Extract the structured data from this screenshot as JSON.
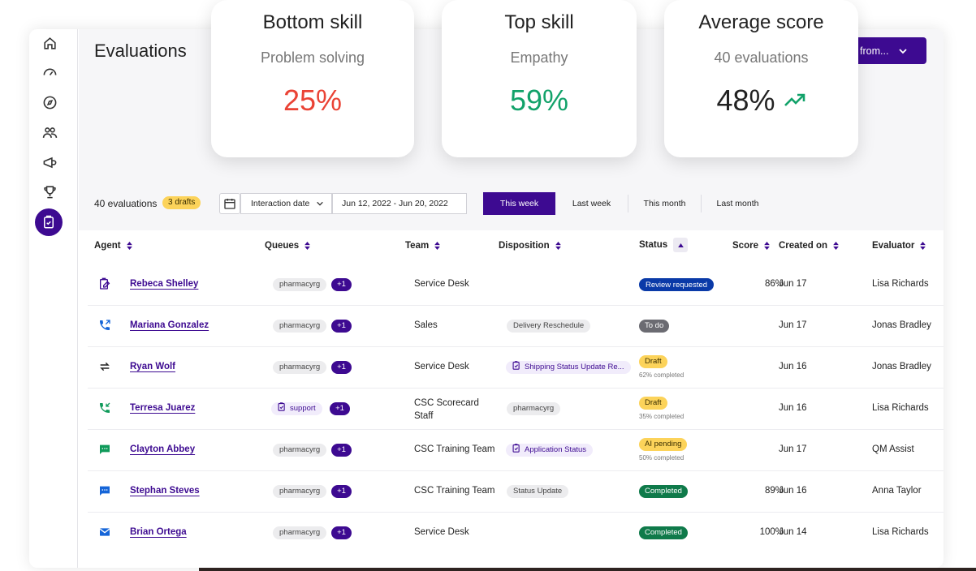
{
  "page": {
    "title": "Evaluations",
    "top_button_label": "from..."
  },
  "cards": [
    {
      "title": "Bottom skill",
      "subtitle": "Problem solving",
      "value": "25%",
      "color": "#ea4335"
    },
    {
      "title": "Top skill",
      "subtitle": "Empathy",
      "value": "59%",
      "color": "#12a26a"
    },
    {
      "title": "Average score",
      "subtitle": "40 evaluations",
      "value": "48%",
      "color": "#222222",
      "trend_icon": "trending-up-icon",
      "trend_color": "#12a26a"
    }
  ],
  "toolbar": {
    "count_label": "40 evaluations",
    "drafts_label": "3 drafts",
    "date_type": "Interaction date",
    "date_range": "Jun 12, 2022 - Jun 20, 2022",
    "periods": [
      {
        "label": "This week",
        "active": true
      },
      {
        "label": "Last week",
        "active": false
      },
      {
        "label": "This month",
        "active": false
      },
      {
        "label": "Last month",
        "active": false
      }
    ]
  },
  "table": {
    "headers": {
      "agent": "Agent",
      "queues": "Queues",
      "team": "Team",
      "disposition": "Disposition",
      "status": "Status",
      "score": "Score",
      "created_on": "Created on",
      "evaluator": "Evaluator"
    },
    "rows": [
      {
        "icon": "clipboard-edit-icon",
        "agent": "Rebeca Shelley",
        "queue": "pharmacyrg",
        "queue_style": "gray",
        "queue_more": "+1",
        "team": "Service Desk",
        "team_line2": "",
        "disposition": "",
        "disposition_style": "",
        "status": "Review requested",
        "status_style": "review",
        "progress": "",
        "score": "86%",
        "created_on": "Jun 17",
        "evaluator": "Lisa Richards"
      },
      {
        "icon": "phone-outgoing-icon",
        "agent": "Mariana Gonzalez",
        "queue": "pharmacyrg",
        "queue_style": "gray",
        "queue_more": "+1",
        "team": "Sales",
        "team_line2": "",
        "disposition": "Delivery Reschedule",
        "disposition_style": "gray",
        "status": "To do",
        "status_style": "todo",
        "progress": "",
        "score": "",
        "created_on": "Jun 17",
        "evaluator": "Jonas Bradley"
      },
      {
        "icon": "transfer-arrows-icon",
        "agent": "Ryan Wolf",
        "queue": "pharmacyrg",
        "queue_style": "gray",
        "queue_more": "+1",
        "team": "Service Desk",
        "team_line2": "",
        "disposition": "Shipping Status Update Re...",
        "disposition_style": "purple",
        "status": "Draft",
        "status_style": "draft",
        "progress": "62% completed",
        "score": "",
        "created_on": "Jun 16",
        "evaluator": "Jonas Bradley"
      },
      {
        "icon": "phone-incoming-icon",
        "agent": "Terresa Juarez",
        "queue": "support",
        "queue_style": "purple",
        "queue_more": "+1",
        "team": "CSC Scorecard",
        "team_line2": "Staff",
        "disposition": "pharmacyrg",
        "disposition_style": "gray",
        "status": "Draft",
        "status_style": "draft",
        "progress": "35% completed",
        "score": "",
        "created_on": "Jun 16",
        "evaluator": "Lisa Richards"
      },
      {
        "icon": "chat-green-icon",
        "agent": "Clayton Abbey",
        "queue": "pharmacyrg",
        "queue_style": "gray",
        "queue_more": "+1",
        "team": "CSC Training Team",
        "team_line2": "",
        "disposition": "Application Status",
        "disposition_style": "purple",
        "status": "AI pending",
        "status_style": "ai",
        "progress": "50% completed",
        "score": "",
        "created_on": "Jun 17",
        "evaluator": "QM Assist"
      },
      {
        "icon": "chat-blue-icon",
        "agent": "Stephan Steves",
        "queue": "pharmacyrg",
        "queue_style": "gray",
        "queue_more": "+1",
        "team": "CSC Training Team",
        "team_line2": "",
        "disposition": "Status Update",
        "disposition_style": "gray",
        "status": "Completed",
        "status_style": "done",
        "progress": "",
        "score": "89%",
        "created_on": "Jun 16",
        "evaluator": "Anna Taylor"
      },
      {
        "icon": "email-icon",
        "agent": "Brian Ortega",
        "queue": "pharmacyrg",
        "queue_style": "gray",
        "queue_more": "+1",
        "team": "Service Desk",
        "team_line2": "",
        "disposition": "",
        "disposition_style": "",
        "status": "Completed",
        "status_style": "done",
        "progress": "",
        "score": "100%",
        "created_on": "Jun 14",
        "evaluator": "Lisa Richards"
      }
    ]
  },
  "colors": {
    "brand": "#3d0a91",
    "negative": "#ea4335",
    "positive": "#12a26a"
  }
}
